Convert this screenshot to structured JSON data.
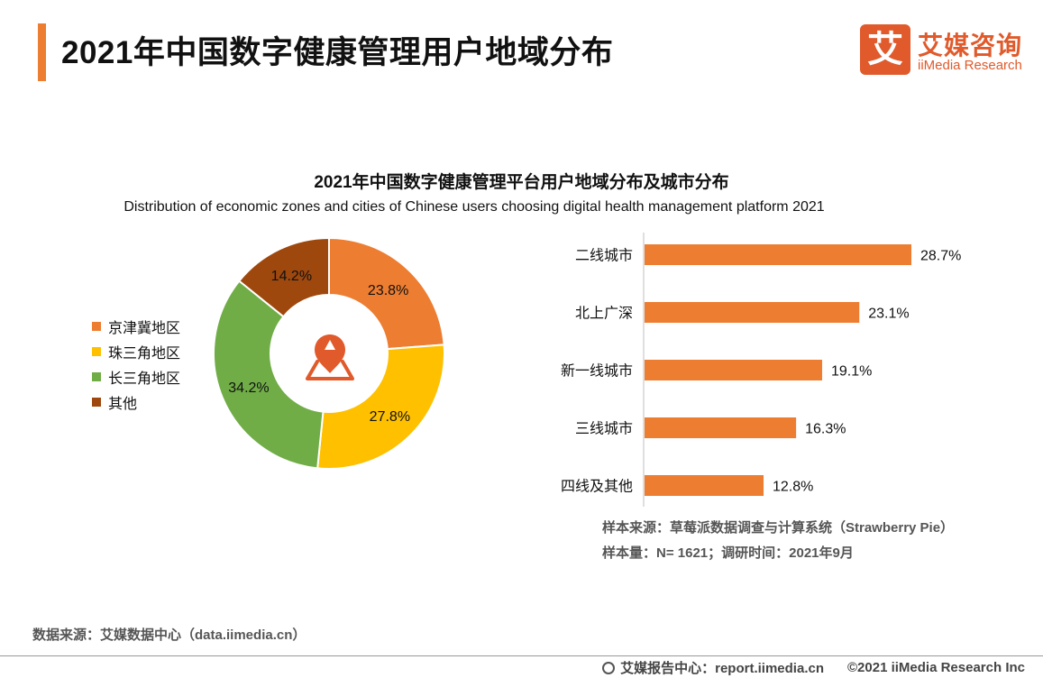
{
  "page": {
    "title": "2021年中国数字健康管理用户地域分布",
    "logo_mark": "艾",
    "logo_cn": "艾媒咨询",
    "logo_en": "iiMedia Research"
  },
  "chart_data": [
    {
      "type": "pie",
      "variant": "donut",
      "title": "2021年中国数字健康管理平台用户地域分布及城市分布",
      "subtitle": "Distribution of economic zones and cities of Chinese users choosing digital health management platform 2021",
      "categories": [
        "京津冀地区",
        "珠三角地区",
        "长三角地区",
        "其他"
      ],
      "values": [
        23.8,
        27.8,
        34.2,
        14.2
      ],
      "labels": [
        "23.8%",
        "27.8%",
        "34.2%",
        "14.2%"
      ],
      "colors": [
        "#ED7D31",
        "#FFC000",
        "#70AD47",
        "#9E480E"
      ],
      "legend_position": "left",
      "center_icon": "location-pin-icon"
    },
    {
      "type": "bar",
      "orientation": "horizontal",
      "categories": [
        "二线城市",
        "北上广深",
        "新一线城市",
        "三线城市",
        "四线及其他"
      ],
      "values": [
        28.7,
        23.1,
        19.1,
        16.3,
        12.8
      ],
      "labels": [
        "28.7%",
        "23.1%",
        "19.1%",
        "16.3%",
        "12.8%"
      ],
      "color": "#ED7D31",
      "grid": false
    }
  ],
  "notes": {
    "sample_source": "样本来源：草莓派数据调查与计算系统（Strawberry Pie）",
    "sample_size": "样本量：N= 1621；调研时间：2021年9月"
  },
  "footer": {
    "source": "数据来源：艾媒数据中心（data.iimedia.cn）",
    "report": "艾媒报告中心：report.iimedia.cn",
    "copyright": "©2021  iiMedia Research  Inc"
  }
}
